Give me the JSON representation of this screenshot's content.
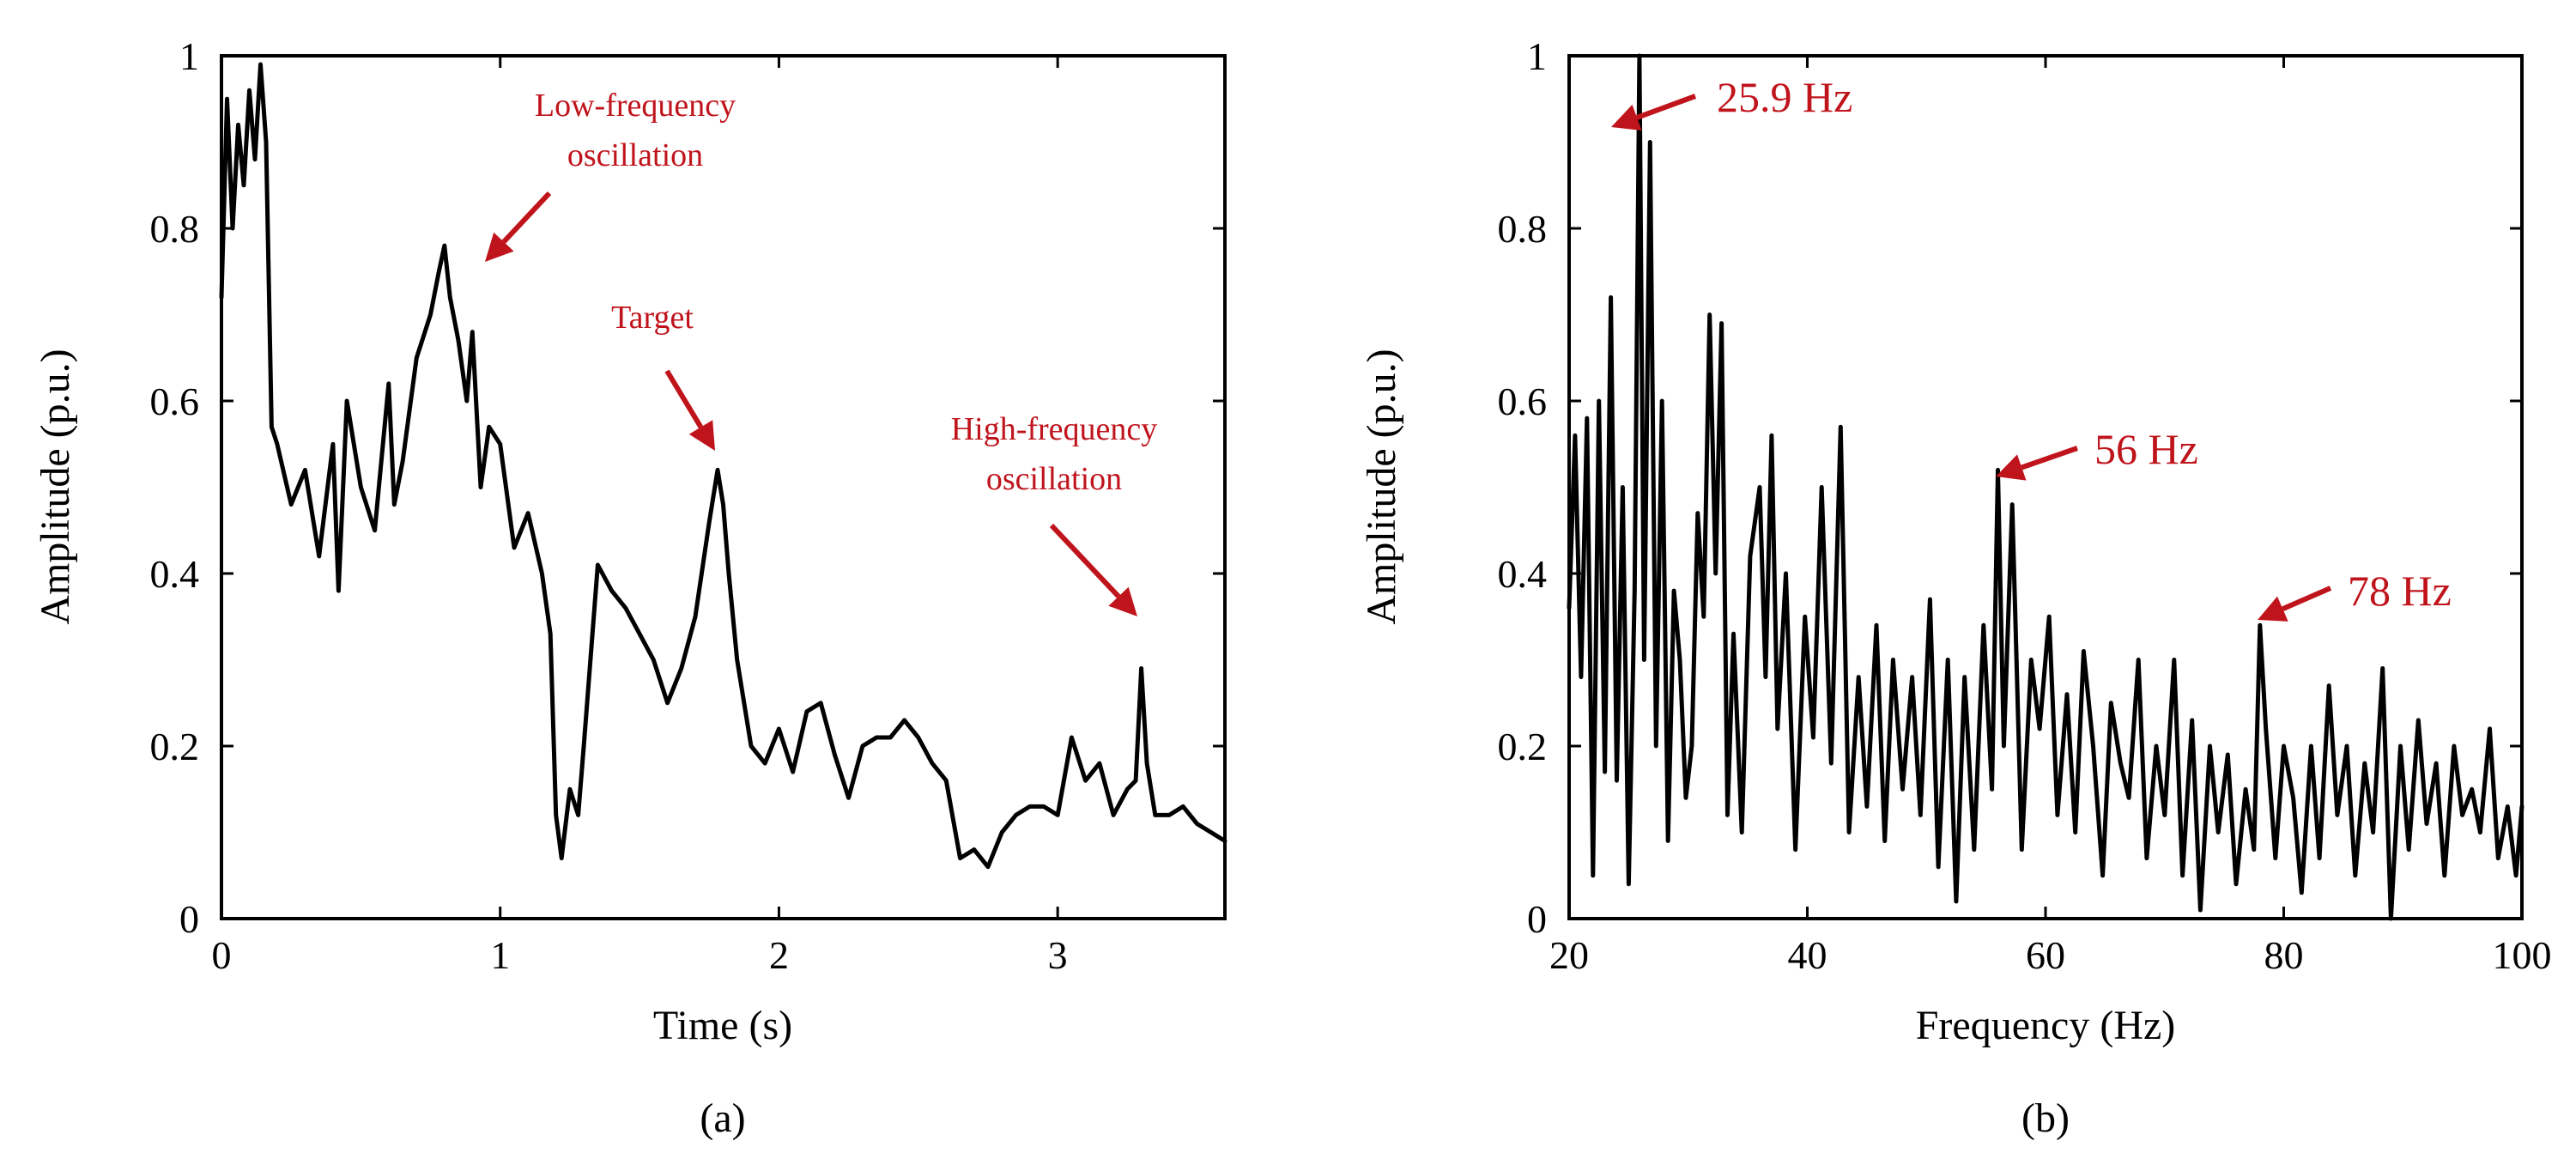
{
  "colors": {
    "annotation": "#c0141c",
    "line": "#000000",
    "background": "#ffffff"
  },
  "chart_data": [
    {
      "panel": "(a)",
      "type": "line",
      "xlabel": "Time (s)",
      "ylabel": "Amplitude (p.u.)",
      "xlim": [
        0,
        3.6
      ],
      "ylim": [
        0,
        1
      ],
      "xticks": [
        0,
        1,
        2,
        3
      ],
      "xtick_labels": [
        "0",
        "1",
        "2",
        "3"
      ],
      "yticks": [
        0,
        0.2,
        0.4,
        0.6,
        0.8,
        1
      ],
      "ytick_labels": [
        "0",
        "0.2",
        "0.4",
        "0.6",
        "0.8",
        "1"
      ],
      "series": [
        {
          "name": "amplitude",
          "x": [
            0,
            0.02,
            0.04,
            0.06,
            0.08,
            0.1,
            0.12,
            0.14,
            0.16,
            0.18,
            0.2,
            0.25,
            0.3,
            0.35,
            0.4,
            0.42,
            0.45,
            0.5,
            0.55,
            0.6,
            0.62,
            0.65,
            0.7,
            0.75,
            0.78,
            0.8,
            0.82,
            0.85,
            0.88,
            0.9,
            0.93,
            0.96,
            1.0,
            1.05,
            1.1,
            1.15,
            1.18,
            1.2,
            1.22,
            1.25,
            1.28,
            1.3,
            1.35,
            1.4,
            1.45,
            1.5,
            1.55,
            1.6,
            1.65,
            1.7,
            1.75,
            1.78,
            1.8,
            1.82,
            1.85,
            1.9,
            1.95,
            2.0,
            2.05,
            2.1,
            2.15,
            2.2,
            2.25,
            2.3,
            2.35,
            2.4,
            2.45,
            2.5,
            2.55,
            2.6,
            2.65,
            2.7,
            2.75,
            2.8,
            2.85,
            2.9,
            2.95,
            3.0,
            3.05,
            3.1,
            3.15,
            3.2,
            3.25,
            3.28,
            3.3,
            3.32,
            3.35,
            3.4,
            3.45,
            3.5,
            3.55,
            3.6
          ],
          "values": [
            0.72,
            0.95,
            0.8,
            0.92,
            0.85,
            0.96,
            0.88,
            0.99,
            0.9,
            0.57,
            0.55,
            0.48,
            0.52,
            0.42,
            0.55,
            0.38,
            0.6,
            0.5,
            0.45,
            0.62,
            0.48,
            0.53,
            0.65,
            0.7,
            0.75,
            0.78,
            0.72,
            0.67,
            0.6,
            0.68,
            0.5,
            0.57,
            0.55,
            0.43,
            0.47,
            0.4,
            0.33,
            0.12,
            0.07,
            0.15,
            0.12,
            0.2,
            0.41,
            0.38,
            0.36,
            0.33,
            0.3,
            0.25,
            0.29,
            0.35,
            0.46,
            0.52,
            0.48,
            0.4,
            0.3,
            0.2,
            0.18,
            0.22,
            0.17,
            0.24,
            0.25,
            0.19,
            0.14,
            0.2,
            0.21,
            0.21,
            0.23,
            0.21,
            0.18,
            0.16,
            0.07,
            0.08,
            0.06,
            0.1,
            0.12,
            0.13,
            0.13,
            0.12,
            0.21,
            0.16,
            0.18,
            0.12,
            0.15,
            0.16,
            0.29,
            0.18,
            0.12,
            0.12,
            0.13,
            0.11,
            0.1,
            0.09
          ]
        }
      ],
      "annotations": [
        {
          "text": "Low-frequency",
          "text2": "oscillation",
          "x": 0.97,
          "y": 0.76
        },
        {
          "text": "Target",
          "text2": "",
          "x": 1.8,
          "y": 0.53
        },
        {
          "text": "High-frequency",
          "text2": "oscillation",
          "x": 3.3,
          "y": 0.34
        }
      ]
    },
    {
      "panel": "(b)",
      "type": "line",
      "xlabel": "Frequency (Hz)",
      "ylabel": "Amplitude (p.u.)",
      "xlim": [
        20,
        100
      ],
      "ylim": [
        0,
        1
      ],
      "xticks": [
        20,
        40,
        60,
        80,
        100
      ],
      "xtick_labels": [
        "20",
        "40",
        "60",
        "80",
        "100"
      ],
      "yticks": [
        0,
        0.2,
        0.4,
        0.6,
        0.8,
        1
      ],
      "ytick_labels": [
        "0",
        "0.2",
        "0.4",
        "0.6",
        "0.8",
        "1"
      ],
      "series": [
        {
          "name": "spectrum",
          "x": [
            20,
            20.5,
            21,
            21.5,
            22,
            22.5,
            23,
            23.5,
            24,
            24.5,
            25,
            25.5,
            25.9,
            26.3,
            26.8,
            27.3,
            27.8,
            28.3,
            28.8,
            29.3,
            29.8,
            30.3,
            30.8,
            31.3,
            31.8,
            32.3,
            32.8,
            33.3,
            33.8,
            34.5,
            35.2,
            36,
            36.5,
            37,
            37.5,
            38.2,
            39,
            39.8,
            40.5,
            41.2,
            42,
            42.8,
            43.5,
            44.3,
            45,
            45.8,
            46.5,
            47.2,
            48,
            48.8,
            49.5,
            50.3,
            51,
            51.8,
            52.5,
            53.2,
            54,
            54.8,
            55.5,
            56,
            56.5,
            57.2,
            58,
            58.8,
            59.5,
            60.3,
            61,
            61.8,
            62.5,
            63.2,
            64,
            64.8,
            65.5,
            66.3,
            67,
            67.8,
            68.5,
            69.3,
            70,
            70.8,
            71.5,
            72.3,
            73,
            73.8,
            74.5,
            75.3,
            76,
            76.8,
            77.5,
            78,
            78.5,
            79.3,
            80,
            80.8,
            81.5,
            82.3,
            83,
            83.8,
            84.5,
            85.3,
            86,
            86.8,
            87.5,
            88.3,
            89,
            89.8,
            90.5,
            91.3,
            92,
            92.8,
            93.5,
            94.3,
            95,
            95.8,
            96.5,
            97.3,
            98,
            98.8,
            99.5,
            100
          ],
          "values": [
            0.36,
            0.56,
            0.28,
            0.58,
            0.05,
            0.6,
            0.17,
            0.72,
            0.16,
            0.5,
            0.04,
            0.38,
            1.0,
            0.3,
            0.9,
            0.2,
            0.6,
            0.09,
            0.38,
            0.3,
            0.14,
            0.2,
            0.47,
            0.35,
            0.7,
            0.4,
            0.69,
            0.12,
            0.33,
            0.1,
            0.42,
            0.5,
            0.28,
            0.56,
            0.22,
            0.4,
            0.08,
            0.35,
            0.21,
            0.5,
            0.18,
            0.57,
            0.1,
            0.28,
            0.13,
            0.34,
            0.09,
            0.3,
            0.15,
            0.28,
            0.12,
            0.37,
            0.06,
            0.3,
            0.02,
            0.28,
            0.08,
            0.34,
            0.15,
            0.52,
            0.2,
            0.48,
            0.08,
            0.3,
            0.22,
            0.35,
            0.12,
            0.26,
            0.1,
            0.31,
            0.2,
            0.05,
            0.25,
            0.18,
            0.14,
            0.3,
            0.07,
            0.2,
            0.12,
            0.3,
            0.05,
            0.23,
            0.01,
            0.2,
            0.1,
            0.19,
            0.04,
            0.15,
            0.08,
            0.34,
            0.22,
            0.07,
            0.2,
            0.14,
            0.03,
            0.2,
            0.07,
            0.27,
            0.12,
            0.2,
            0.05,
            0.18,
            0.1,
            0.29,
            0.0,
            0.2,
            0.08,
            0.23,
            0.11,
            0.18,
            0.05,
            0.2,
            0.12,
            0.15,
            0.1,
            0.22,
            0.07,
            0.13,
            0.05,
            0.13
          ]
        }
      ],
      "annotations": [
        {
          "text": "25.9 Hz",
          "text2": "",
          "x": 25.9,
          "y": 0.93
        },
        {
          "text": "56 Hz",
          "text2": "",
          "x": 56.5,
          "y": 0.51
        },
        {
          "text": "78 Hz",
          "text2": "",
          "x": 78,
          "y": 0.34
        }
      ]
    }
  ]
}
